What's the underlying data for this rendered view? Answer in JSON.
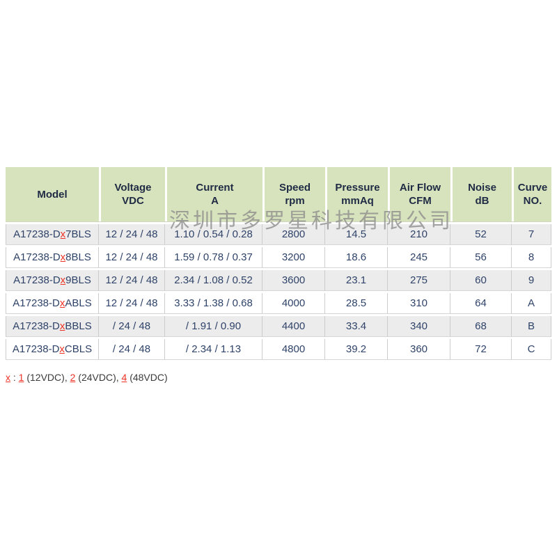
{
  "watermark": {
    "text": "深圳市多罗星科技有限公司"
  },
  "colors": {
    "header_bg": "#d7e3bc",
    "header_text": "#1f2a44",
    "row_alt_bg": "#ececec",
    "data_text": "#2f4369",
    "accent_red": "#ee3224",
    "watermark_gray": "#8f8f8f"
  },
  "table": {
    "headers": [
      {
        "line1": "Model",
        "line2": ""
      },
      {
        "line1": "Voltage",
        "line2": "VDC"
      },
      {
        "line1": "Current",
        "line2": "A"
      },
      {
        "line1": "Speed",
        "line2": "rpm"
      },
      {
        "line1": "Pressure",
        "line2": "mmAq"
      },
      {
        "line1": "Air Flow",
        "line2": "CFM"
      },
      {
        "line1": "Noise",
        "line2": "dB"
      },
      {
        "line1": "Curve",
        "line2": "NO."
      }
    ],
    "rows": [
      {
        "model": {
          "prefix": "A17238-D",
          "x": "x",
          "suffix": "7BLS"
        },
        "values": [
          "12 / 24 / 48",
          "1.10 / 0.54 / 0.28",
          "2800",
          "14.5",
          "210",
          "52",
          "7"
        ]
      },
      {
        "model": {
          "prefix": "A17238-D",
          "x": "x",
          "suffix": "8BLS"
        },
        "values": [
          "12 / 24 / 48",
          "1.59 / 0.78 / 0.37",
          "3200",
          "18.6",
          "245",
          "56",
          "8"
        ]
      },
      {
        "model": {
          "prefix": "A17238-D",
          "x": "x",
          "suffix": "9BLS"
        },
        "values": [
          "12 / 24 / 48",
          "2.34 / 1.08 / 0.52",
          "3600",
          "23.1",
          "275",
          "60",
          "9"
        ]
      },
      {
        "model": {
          "prefix": "A17238-D",
          "x": "x",
          "suffix": "ABLS"
        },
        "values": [
          "12 / 24 / 48",
          "3.33 / 1.38 / 0.68",
          "4000",
          "28.5",
          "310",
          "64",
          "A"
        ]
      },
      {
        "model": {
          "prefix": "A17238-D",
          "x": "x",
          "suffix": "BBLS"
        },
        "values": [
          "/ 24 / 48",
          "/ 1.91 / 0.90",
          "4400",
          "33.4",
          "340",
          "68",
          "B"
        ]
      },
      {
        "model": {
          "prefix": "A17238-D",
          "x": "x",
          "suffix": "CBLS"
        },
        "values": [
          "/ 24 / 48",
          "/ 2.34 / 1.13",
          "4800",
          "39.2",
          "360",
          "72",
          "C"
        ]
      }
    ]
  },
  "footnote": {
    "x": "x",
    "sep": " : ",
    "k1": "1",
    "t1": " (12VDC), ",
    "k2": "2",
    "t2": " (24VDC), ",
    "k3": "4",
    "t3": " (48VDC)"
  }
}
